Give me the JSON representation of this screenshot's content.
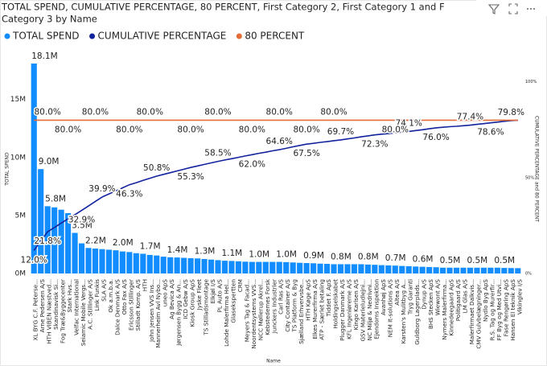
{
  "chart_data": {
    "type": "combo",
    "title": [
      "TOTAL SPEND, CUMULATIVE PERCENTAGE, 80 PERCENT, First Category 2, First Category 1 and F",
      "Category 3 by Name"
    ],
    "x_label": "Name",
    "y_label": "TOTAL SPEND",
    "y2_label": "CUMULATIVE PERCENTAGE and 80 PERCENT",
    "categories": [
      "XL BYG C.F. Peterse...",
      "Arne Pedersen A/S",
      "HTH VIBEN Næstved...",
      "Skandinavisk Si...",
      "Fog Træ&Byggecenter",
      "Stark Hvs...",
      "Velfac International",
      "Seiamic Mobile Vergs...",
      "A.C. Stillinger A/S",
      "Link Funkis",
      "SLA A/S",
      "Ok a.m.b.a.",
      "Dalce Denmark A/S",
      "Otto Fax A/S",
      "Ericsson Stillinger",
      "Stilladt Komp. A/S",
      "HTH",
      "John Jensen VVS Ins...",
      "Mannerheim Avl Nybo...",
      "uneo ApS",
      "Ag Bevica A/S",
      "Jørgensen Bygg & An...",
      "ICD Gebw A/S",
      "Kiosk Group ApS",
      "Jyske Fleet",
      "TS Stilladsmontage",
      "Elkjøl I/S",
      "PL Auto A/S",
      "Lohde Malerfirma Hel...",
      "Glasekspertten",
      "CRM",
      "Meyers Tag & Facad...",
      "Noordentsystems VVS...",
      "NCC Møllerup Akrel...",
      "Kebstedemes Forsk",
      "Junckers Industrier",
      "Carl Ras A/S",
      "City Container A/S",
      "TS Platform & Byg",
      "Sjælland Erhvervsbe...",
      "HTH Køge ApS",
      "Elkes Murerfirma A/S",
      "ATP - Særlet betaling",
      "Tiddet F. ApS",
      "Holdingselskabet",
      "Plugger Danmark A/S",
      "KFL Ingeniørerne A/S",
      "Kingo Karlsen A/S",
      "GSV Materieludlejni...",
      "NC Miljø & Nedrivni...",
      "Ejendoms Inspektion",
      "Avanhøj ApS",
      "NEM It-solutions A/S",
      "Altea A/S",
      "Karsten's Mulitbyg A...",
      "Tryg Garanti",
      "Guldborg Lagerplads...",
      "Dynup A/S",
      "BHS Stecken ApS",
      "Wiewont A/S",
      "Nymers Malerfirma...",
      "Kinnedeegaard ApS",
      "Politigaard A/S",
      "LM Glas A/S",
      "Malerfirmaet Dalkvis...",
      "CMV Gulvbelægninger...",
      "Nydlo Byg ApS",
      "R.S. Tag og Murerfir...",
      "FF Byg og Med Utvi...",
      "Fase Rengøring ApS",
      "Hansen El teknik ApS",
      "Vikinglev I/S"
    ],
    "series": [
      {
        "name": "TOTAL SPEND",
        "type": "bar",
        "color": "#118DFF",
        "values": [
          18100000,
          9000000,
          5800000,
          5700000,
          5500000,
          5200000,
          3500000,
          2600000,
          2200000,
          2150000,
          2100000,
          2050000,
          2000000,
          1900000,
          1850000,
          1750000,
          1700000,
          1600000,
          1550000,
          1450000,
          1400000,
          1380000,
          1350000,
          1320000,
          1300000,
          1250000,
          1200000,
          1150000,
          1100000,
          1080000,
          1050000,
          1020000,
          1000000,
          1000000,
          1000000,
          1000000,
          1000000,
          980000,
          950000,
          920000,
          900000,
          880000,
          850000,
          830000,
          800000,
          800000,
          800000,
          800000,
          800000,
          770000,
          750000,
          720000,
          700000,
          680000,
          650000,
          630000,
          600000,
          580000,
          560000,
          540000,
          500000,
          500000,
          500000,
          500000,
          500000,
          500000,
          500000,
          500000,
          500000,
          480000,
          470000,
          460000
        ],
        "value_labels": [
          "18.1M",
          "9.0M",
          "5.8M",
          null,
          null,
          null,
          "3.5M",
          null,
          "2.2M",
          null,
          null,
          null,
          "2.0M",
          null,
          null,
          null,
          "1.7M",
          null,
          null,
          null,
          "1.4M",
          null,
          null,
          null,
          "1.3M",
          null,
          null,
          null,
          "1.1M",
          null,
          null,
          null,
          "1.0M",
          null,
          null,
          null,
          "1.0M",
          null,
          null,
          null,
          "0.9M",
          null,
          null,
          null,
          "0.8M",
          null,
          null,
          null,
          "0.8M",
          null,
          null,
          null,
          "0.7M",
          null,
          null,
          null,
          "0.6M",
          null,
          null,
          null,
          "0.5M",
          null,
          null,
          null,
          "0.5M",
          null,
          null,
          null,
          "0.5M",
          null,
          null,
          null
        ]
      },
      {
        "name": "CUMULATIVE PERCENTAGE",
        "type": "line",
        "axis": "y2",
        "color": "#12239E",
        "values": [
          12.0,
          17.0,
          21.8,
          24.0,
          26.3,
          28.5,
          30.7,
          32.9,
          35.2,
          37.6,
          39.9,
          41.5,
          43.1,
          44.7,
          46.3,
          47.4,
          48.6,
          49.7,
          50.8,
          51.7,
          52.6,
          53.5,
          54.4,
          55.3,
          56.1,
          56.9,
          57.7,
          58.5,
          59.2,
          59.9,
          60.6,
          61.3,
          62.0,
          62.7,
          63.3,
          64.0,
          64.6,
          65.3,
          66.1,
          66.8,
          67.5,
          67.9,
          68.4,
          68.8,
          69.3,
          69.7,
          70.2,
          70.7,
          71.3,
          71.8,
          72.3,
          72.7,
          73.0,
          73.4,
          73.7,
          74.1,
          74.6,
          75.0,
          75.5,
          76.0,
          76.3,
          76.6,
          76.8,
          77.1,
          77.4,
          77.8,
          78.2,
          78.6,
          79.0,
          79.4,
          79.8,
          80.0
        ],
        "value_labels": [
          "12.0%",
          null,
          "21.8%",
          null,
          null,
          null,
          null,
          "32.9%",
          null,
          null,
          "39.9%",
          null,
          null,
          null,
          "46.3%",
          null,
          null,
          null,
          "50.8%",
          null,
          null,
          null,
          null,
          "55.3%",
          null,
          null,
          null,
          "58.5%",
          null,
          null,
          null,
          null,
          "62.0%",
          null,
          null,
          null,
          "64.6%",
          null,
          null,
          null,
          "67.5%",
          null,
          null,
          null,
          null,
          "69.7%",
          null,
          null,
          null,
          null,
          "72.3%",
          null,
          null,
          null,
          null,
          "74.1%",
          null,
          null,
          null,
          "76.0%",
          null,
          null,
          null,
          null,
          "77.4%",
          null,
          null,
          "78.6%",
          null,
          null,
          "79.8%",
          null
        ]
      },
      {
        "name": "80 PERCENT",
        "type": "line",
        "axis": "y2",
        "color": "#E66C37",
        "values": [
          80,
          80,
          80,
          80,
          80,
          80,
          80,
          80,
          80,
          80,
          80,
          80,
          80,
          80,
          80,
          80,
          80,
          80,
          80,
          80,
          80,
          80,
          80,
          80,
          80,
          80,
          80,
          80,
          80,
          80,
          80,
          80,
          80,
          80,
          80,
          80,
          80,
          80,
          80,
          80,
          80,
          80,
          80,
          80,
          80,
          80,
          80,
          80,
          80,
          80,
          80,
          80,
          80,
          80,
          80,
          80,
          80,
          80,
          80,
          80,
          80,
          80,
          80,
          80,
          80,
          80,
          80,
          80,
          80,
          80,
          80,
          80
        ],
        "value_labels": [
          null,
          null,
          "80.0%",
          null,
          null,
          "80.0%",
          null,
          null,
          null,
          "80.0%",
          null,
          null,
          null,
          null,
          "80.0%",
          null,
          null,
          "80.0%",
          null,
          null,
          null,
          null,
          null,
          "80.0%",
          null,
          null,
          null,
          "80.0%",
          null,
          null,
          null,
          null,
          "80.0%",
          null,
          null,
          null,
          "80.0%",
          null,
          null,
          null,
          "80.0%",
          null,
          null,
          null,
          "80.0%",
          null,
          null,
          null,
          null,
          null,
          null,
          null,
          null,
          "80.0%",
          null,
          null,
          null,
          null,
          null,
          null,
          null,
          null,
          null,
          null,
          null,
          null,
          null,
          null,
          null,
          null,
          null,
          null
        ]
      }
    ],
    "ylim": [
      0,
      19000000
    ],
    "yticks": [
      {
        "value": 0,
        "label": "0M"
      },
      {
        "value": 5000000,
        "label": "5M"
      },
      {
        "value": 10000000,
        "label": "10M"
      },
      {
        "value": 15000000,
        "label": "15M"
      }
    ],
    "y2lim": [
      0,
      115
    ],
    "y2ticks": [
      {
        "value": 0,
        "label": "0%"
      },
      {
        "value": 50,
        "label": "50%"
      },
      {
        "value": 100,
        "label": "100%"
      }
    ],
    "grid": false,
    "legend": "top-left"
  }
}
